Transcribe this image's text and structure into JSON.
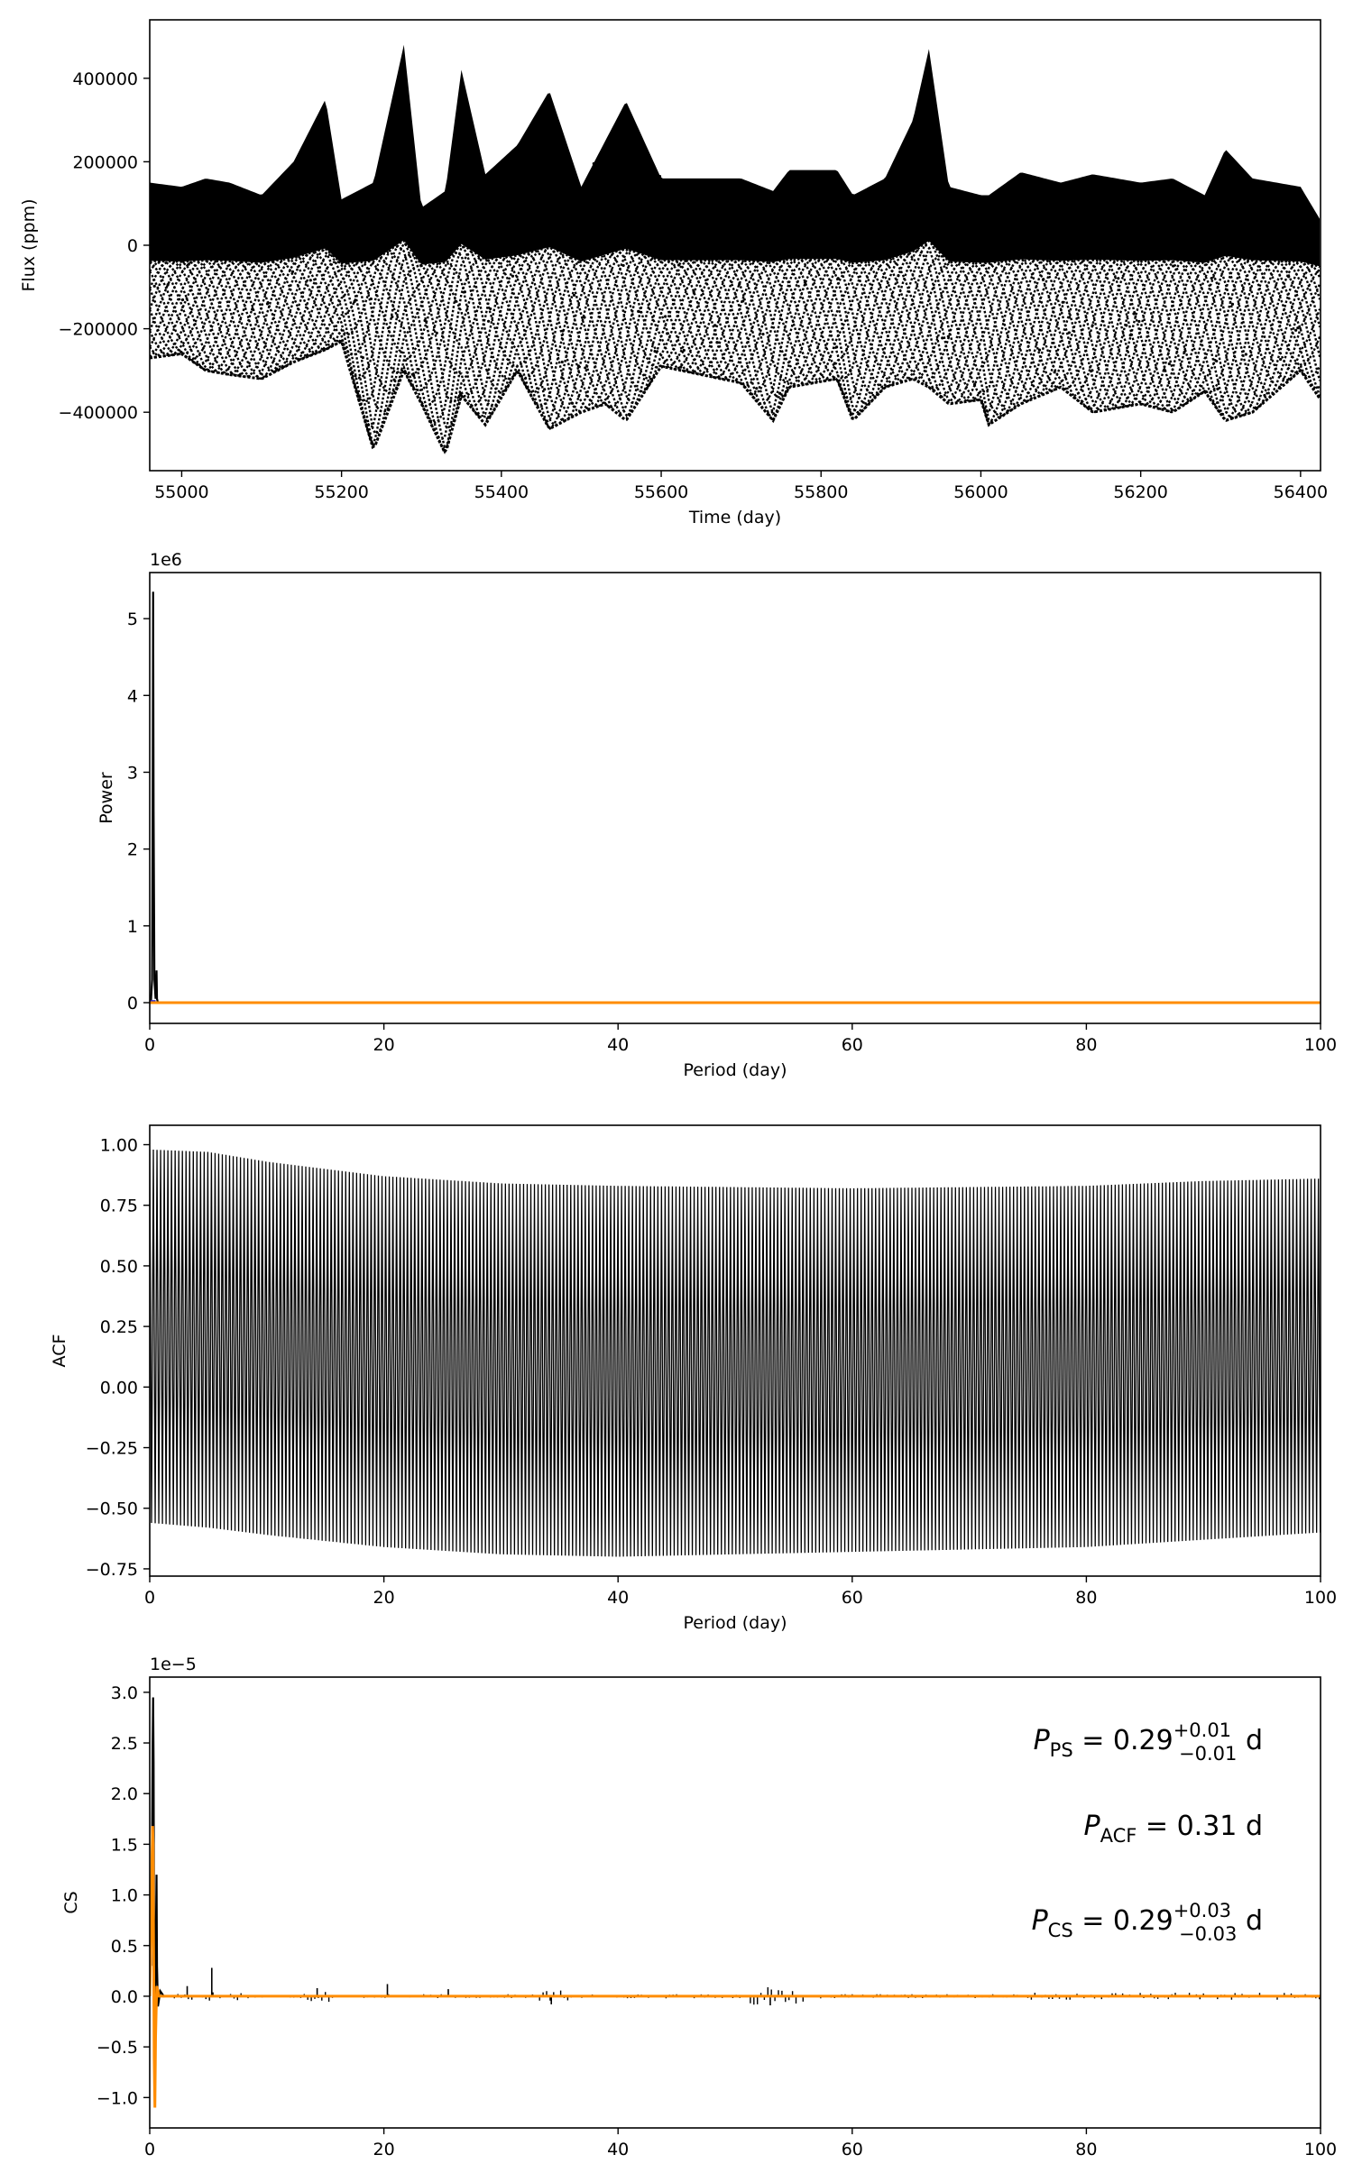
{
  "chart_data": [
    {
      "type": "scatter",
      "xlabel": "Time (day)",
      "ylabel": "Flux (ppm)",
      "xlim": [
        54960,
        56425
      ],
      "ylim": [
        -540000,
        540000
      ],
      "xticks": [
        55000,
        55200,
        55400,
        55600,
        55800,
        56000,
        56200,
        56400
      ],
      "yticks": [
        -400000,
        -200000,
        0,
        200000,
        400000
      ],
      "series": [
        {
          "color": "#000000",
          "envelope": {
            "t": [
              54960,
              55000,
              55030,
              55060,
              55100,
              55140,
              55180,
              55200,
              55240,
              55278,
              55300,
              55330,
              55350,
              55380,
              55420,
              55460,
              55500,
              55530,
              55556,
              55600,
              55700,
              55740,
              55760,
              55820,
              55840,
              55880,
              55915,
              55935,
              55960,
              56000,
              56010,
              56050,
              56100,
              56140,
              56200,
              56240,
              56280,
              56306,
              56340,
              56400,
              56425
            ],
            "upper": [
              150000,
              140000,
              160000,
              150000,
              120000,
              200000,
              350000,
              110000,
              150000,
              480000,
              90000,
              130000,
              420000,
              170000,
              240000,
              370000,
              140000,
              250000,
              345000,
              160000,
              160000,
              130000,
              180000,
              180000,
              120000,
              160000,
              300000,
              470000,
              140000,
              120000,
              120000,
              175000,
              150000,
              170000,
              150000,
              160000,
              120000,
              230000,
              160000,
              140000,
              60000
            ],
            "lower": [
              -270000,
              -260000,
              -300000,
              -310000,
              -320000,
              -280000,
              -250000,
              -230000,
              -490000,
              -300000,
              -380000,
              -500000,
              -360000,
              -430000,
              -300000,
              -440000,
              -400000,
              -380000,
              -420000,
              -290000,
              -330000,
              -420000,
              -340000,
              -320000,
              -420000,
              -340000,
              -320000,
              -340000,
              -380000,
              -370000,
              -430000,
              -380000,
              -340000,
              -400000,
              -380000,
              -400000,
              -350000,
              -420000,
              -400000,
              -300000,
              -370000
            ]
          }
        }
      ]
    },
    {
      "type": "line",
      "xlabel": "Period (day)",
      "ylabel": "Power",
      "offset_text": "1e6",
      "xlim": [
        0,
        100
      ],
      "ylim": [
        -0.27,
        5.6
      ],
      "xticks": [
        0,
        20,
        40,
        60,
        80,
        100
      ],
      "yticks": [
        0,
        1,
        2,
        3,
        4,
        5
      ],
      "series": [
        {
          "color": "#000000",
          "x": [
            0.1,
            0.2,
            0.25,
            0.29,
            0.33,
            0.4,
            0.5,
            0.58,
            0.62,
            0.7,
            1.0
          ],
          "y": [
            0,
            0.3,
            2.5,
            5.35,
            2.5,
            0.3,
            0.05,
            0.42,
            0.05,
            0,
            0
          ]
        },
        {
          "color": "#1f1fcf",
          "x": [
            0.05,
            0.5
          ],
          "y": [
            0.02,
            0.02
          ]
        },
        {
          "color": "#ff8c00",
          "x": [
            0,
            100
          ],
          "y": [
            0,
            0
          ]
        }
      ]
    },
    {
      "type": "line",
      "xlabel": "Period (day)",
      "ylabel": "ACF",
      "xlim": [
        0,
        100
      ],
      "ylim": [
        -0.78,
        1.08
      ],
      "xticks": [
        0,
        20,
        40,
        60,
        80,
        100
      ],
      "yticks": [
        -0.75,
        -0.5,
        -0.25,
        0.0,
        0.25,
        0.5,
        0.75,
        1.0
      ],
      "series": [
        {
          "color": "#000000",
          "period": 0.31,
          "envelope": {
            "x": [
              0,
              5,
              10,
              20,
              30,
              40,
              60,
              80,
              90,
              100
            ],
            "upper": [
              0.98,
              0.97,
              0.93,
              0.87,
              0.84,
              0.83,
              0.82,
              0.83,
              0.85,
              0.86
            ],
            "lower": [
              -0.56,
              -0.58,
              -0.61,
              -0.66,
              -0.69,
              -0.7,
              -0.68,
              -0.66,
              -0.63,
              -0.6
            ]
          }
        }
      ]
    },
    {
      "type": "line",
      "xlabel": "Period (day)",
      "ylabel": "CS",
      "offset_text": "1e−5",
      "xlim": [
        0,
        100
      ],
      "ylim": [
        -1.3,
        3.15
      ],
      "xticks": [
        0,
        20,
        40,
        60,
        80,
        100
      ],
      "yticks": [
        -1.0,
        -0.5,
        0.0,
        0.5,
        1.0,
        1.5,
        2.0,
        2.5,
        3.0
      ],
      "series": [
        {
          "color": "#000000",
          "x": [
            0.1,
            0.2,
            0.25,
            0.29,
            0.33,
            0.36,
            0.42,
            0.5,
            0.58,
            0.62,
            0.7,
            0.9,
            1.2
          ],
          "y": [
            0.3,
            1.5,
            2.5,
            2.95,
            2.3,
            1.0,
            -0.4,
            0.3,
            1.2,
            0.3,
            -0.1,
            0.05,
            0
          ]
        },
        {
          "color": "#ff8c00",
          "x": [
            0,
            0.1,
            0.2,
            0.25,
            0.29,
            0.33,
            0.38,
            0.44,
            0.5,
            0.6,
            0.8,
            1.2,
            100
          ],
          "y": [
            0,
            0.6,
            1.4,
            1.68,
            1.5,
            0.5,
            -0.6,
            -1.1,
            -0.4,
            0.1,
            0,
            0,
            0
          ]
        }
      ],
      "annotations": [
        {
          "symbol": "P",
          "sub": "PS",
          "value": "= 0.29",
          "sup": "+0.01",
          "inf": "−0.01",
          "unit": "d"
        },
        {
          "symbol": "P",
          "sub": "ACF",
          "value": "= 0.31",
          "sup": "",
          "inf": "",
          "unit": "d"
        },
        {
          "symbol": "P",
          "sub": "CS",
          "value": "= 0.29",
          "sup": "+0.03",
          "inf": "−0.03",
          "unit": "d"
        }
      ]
    }
  ]
}
